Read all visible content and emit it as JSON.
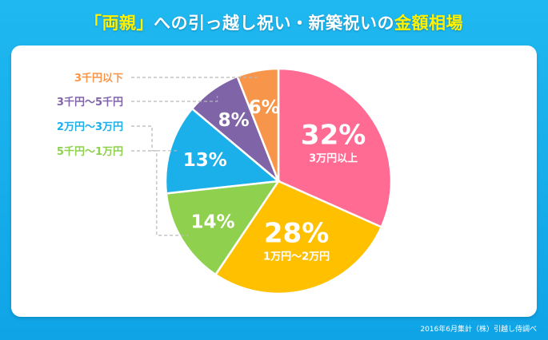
{
  "header": {
    "title_bracket_open": "「",
    "title_highlight1": "両親",
    "title_bracket_close": "」",
    "title_middle": "への引っ越し祝い・新築祝いの",
    "title_highlight2": "金額相場"
  },
  "footer": {
    "source": "2016年6月集計（株）引越し侍調べ"
  },
  "chart_data": {
    "type": "pie",
    "start_angle_deg": 0,
    "direction": "clockwise",
    "slices": [
      {
        "label": "3万円以上",
        "value": 32,
        "pct_label": "32%",
        "color": "#ff6b93",
        "label_inside": true
      },
      {
        "label": "1万円～2万円",
        "value": 28,
        "pct_label": "28%",
        "color": "#ffc000",
        "label_inside": true
      },
      {
        "label": "5千円～1万円",
        "value": 14,
        "pct_label": "14%",
        "color": "#8fd14f",
        "label_inside": false
      },
      {
        "label": "2万円～3万円",
        "value": 13,
        "pct_label": "13%",
        "color": "#1cb0ea",
        "label_inside": false
      },
      {
        "label": "3千円～5千円",
        "value": 8,
        "pct_label": "8%",
        "color": "#8064a8",
        "label_inside": false
      },
      {
        "label": "3千円以下",
        "value": 6,
        "pct_label": "6%",
        "color": "#f7964a",
        "label_inside": false
      }
    ]
  }
}
